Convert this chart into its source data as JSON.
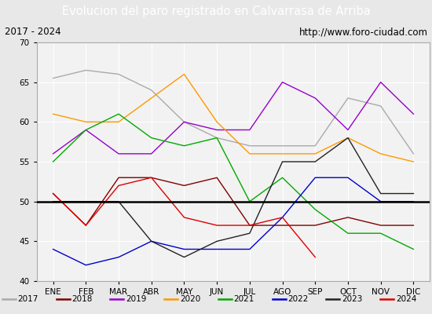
{
  "title": "Evolucion del paro registrado en Calvarrasa de Arriba",
  "subtitle_left": "2017 - 2024",
  "subtitle_right": "http://www.foro-ciudad.com",
  "title_bg_color": "#5b9bd5",
  "title_text_color": "white",
  "months": [
    "ENE",
    "FEB",
    "MAR",
    "ABR",
    "MAY",
    "JUN",
    "JUL",
    "AGO",
    "SEP",
    "OCT",
    "NOV",
    "DIC"
  ],
  "ylim": [
    40,
    70
  ],
  "yticks": [
    40,
    45,
    50,
    55,
    60,
    65,
    70
  ],
  "hline_y": 50,
  "series": {
    "2017": {
      "color": "#aaaaaa",
      "data": [
        65.5,
        66.5,
        66,
        64,
        60,
        58,
        57,
        57,
        57,
        63,
        62,
        56
      ]
    },
    "2018": {
      "color": "#800000",
      "data": [
        51,
        47,
        53,
        53,
        52,
        53,
        47,
        47,
        47,
        48,
        47,
        47
      ]
    },
    "2019": {
      "color": "#9900cc",
      "data": [
        56,
        59,
        56,
        56,
        60,
        59,
        59,
        65,
        63,
        59,
        65,
        61
      ]
    },
    "2020": {
      "color": "#ff9900",
      "data": [
        61,
        60,
        60,
        63,
        66,
        60,
        56,
        56,
        56,
        58,
        56,
        55
      ]
    },
    "2021": {
      "color": "#00aa00",
      "data": [
        55,
        59,
        61,
        58,
        57,
        58,
        50,
        53,
        49,
        46,
        46,
        44
      ]
    },
    "2022": {
      "color": "#0000cc",
      "data": [
        44,
        42,
        43,
        45,
        44,
        44,
        44,
        48,
        53,
        53,
        50,
        50
      ]
    },
    "2023": {
      "color": "#222222",
      "data": [
        50,
        50,
        50,
        45,
        43,
        45,
        46,
        55,
        55,
        58,
        51,
        51
      ]
    },
    "2024": {
      "color": "#dd0000",
      "data": [
        51,
        47,
        52,
        53,
        48,
        47,
        47,
        48,
        43,
        null,
        null,
        null
      ]
    }
  }
}
